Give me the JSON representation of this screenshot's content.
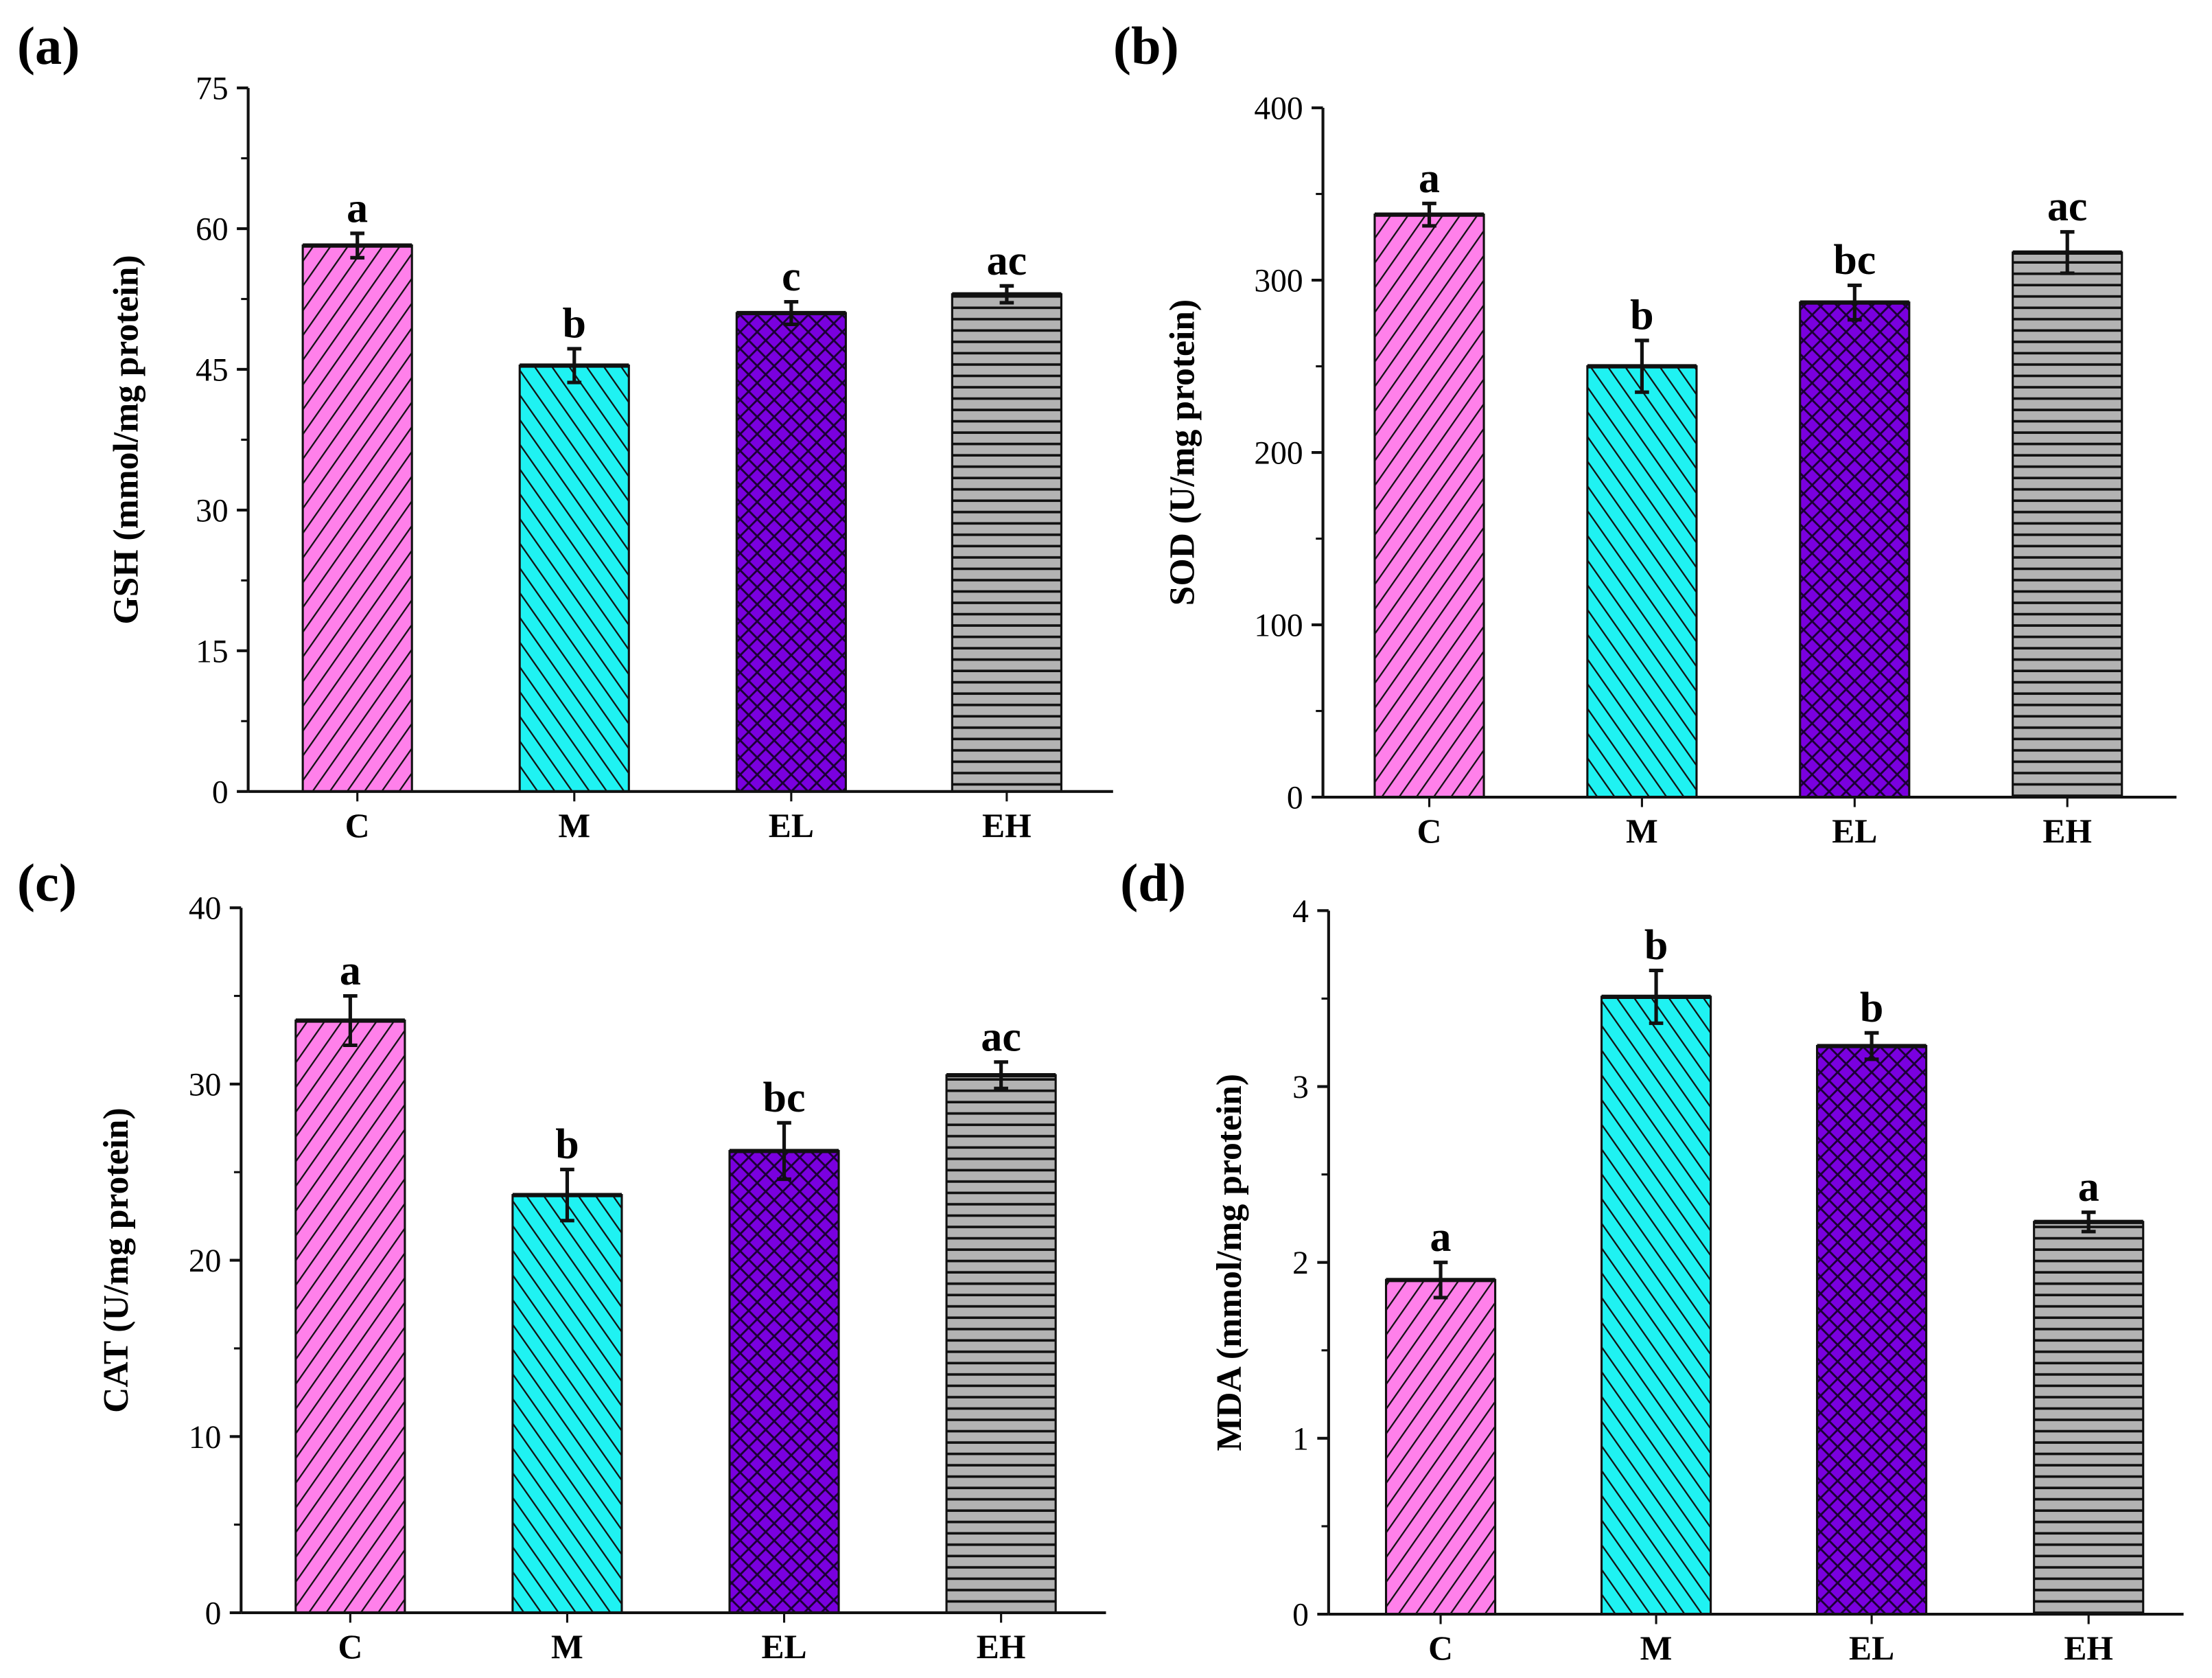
{
  "colors": {
    "C": "#ff80ea",
    "M": "#1ff2f2",
    "EL": "#7a00df",
    "EH": "#b3b3b3"
  },
  "patterns": {
    "C": "diagonal-up",
    "M": "diagonal-down",
    "EL": "crosshatch",
    "EH": "horizontal"
  },
  "chart_data": [
    {
      "type": "bar",
      "panel_label": "(a)",
      "categories": [
        "C",
        "M",
        "EL",
        "EH"
      ],
      "values": [
        58.2,
        45.4,
        51.0,
        53.0
      ],
      "errors": [
        1.3,
        1.8,
        1.2,
        0.9
      ],
      "significance": [
        "a",
        "b",
        "c",
        "ac"
      ],
      "ylabel": "GSH (mmol/mg protein)",
      "xlabel": "",
      "ylim": [
        0,
        75
      ],
      "yticks": [
        0,
        15,
        30,
        45,
        60,
        75
      ],
      "grid": false
    },
    {
      "type": "bar",
      "panel_label": "(b)",
      "categories": [
        "C",
        "M",
        "EL",
        "EH"
      ],
      "values": [
        338,
        250,
        287,
        316
      ],
      "errors": [
        6.5,
        15,
        10,
        12
      ],
      "significance": [
        "a",
        "b",
        "bc",
        "ac"
      ],
      "ylabel": "SOD (U/mg protein)",
      "xlabel": "",
      "ylim": [
        0,
        400
      ],
      "yticks": [
        0,
        100,
        200,
        300,
        400
      ],
      "grid": false
    },
    {
      "type": "bar",
      "panel_label": "(c)",
      "categories": [
        "C",
        "M",
        "EL",
        "EH"
      ],
      "values": [
        33.6,
        23.7,
        26.2,
        30.5
      ],
      "errors": [
        1.4,
        1.45,
        1.6,
        0.75
      ],
      "significance": [
        "a",
        "b",
        "bc",
        "ac"
      ],
      "ylabel": "CAT (U/mg protein)",
      "xlabel": "",
      "ylim": [
        0,
        40
      ],
      "yticks": [
        0,
        10,
        20,
        30,
        40
      ],
      "grid": false
    },
    {
      "type": "bar",
      "panel_label": "(d)",
      "categories": [
        "C",
        "M",
        "EL",
        "EH"
      ],
      "values": [
        1.9,
        3.51,
        3.23,
        2.23
      ],
      "errors": [
        0.1,
        0.15,
        0.075,
        0.055
      ],
      "significance": [
        "a",
        "b",
        "b",
        "a"
      ],
      "ylabel": "MDA (mmol/mg protein)",
      "xlabel": "",
      "ylim": [
        0,
        4
      ],
      "yticks": [
        0,
        1,
        2,
        3,
        4
      ],
      "grid": false
    }
  ]
}
